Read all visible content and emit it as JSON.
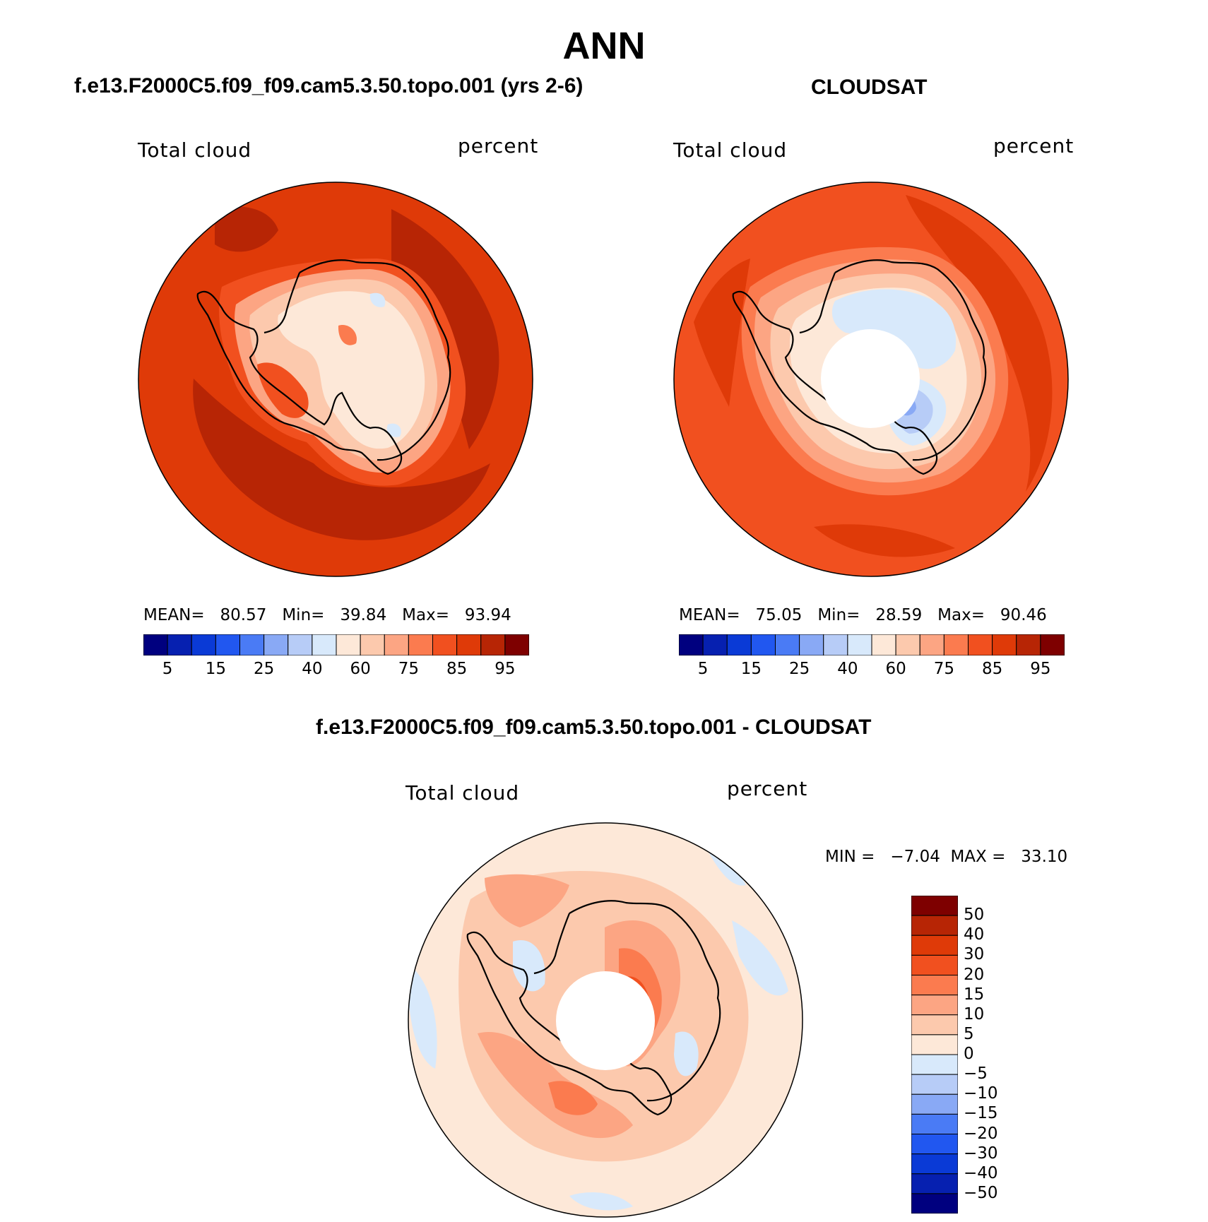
{
  "figure": {
    "title": "ANN",
    "panels": [
      {
        "id": "model",
        "title": "f.e13.F2000C5.f09_f09.cam5.3.50.topo.001 (yrs 2-6)",
        "left_label": "Total cloud",
        "right_label": "percent",
        "stats": {
          "mean_label": "MEAN=",
          "mean": "80.57",
          "min_label": "Min=",
          "min": "39.84",
          "max_label": "Max=",
          "max": "93.94"
        }
      },
      {
        "id": "obs",
        "title": "CLOUDSAT",
        "left_label": "Total cloud",
        "right_label": "percent",
        "stats": {
          "mean_label": "MEAN=",
          "mean": "75.05",
          "min_label": "Min=",
          "min": "28.59",
          "max_label": "Max=",
          "max": "90.46"
        }
      },
      {
        "id": "diff",
        "title": "f.e13.F2000C5.f09_f09.cam5.3.50.topo.001 - CLOUDSAT",
        "left_label": "Total cloud",
        "right_label": "percent",
        "minmax_text": "MIN =   −7.04  MAX =   33.10"
      }
    ]
  },
  "colorbars": {
    "abs": {
      "colors": [
        "#00007f",
        "#0620b0",
        "#0a3ad6",
        "#2157f0",
        "#4a7bf5",
        "#89a9f5",
        "#b7ccf7",
        "#d8e9fb",
        "#fde8d8",
        "#fcc9ad",
        "#fca583",
        "#fb7b4f",
        "#f1501f",
        "#df3a08",
        "#b72505",
        "#7e0000"
      ],
      "ticks": [
        "5",
        "15",
        "25",
        "40",
        "60",
        "75",
        "85",
        "95"
      ]
    },
    "diff": {
      "colors": [
        "#7e0000",
        "#b72505",
        "#df3a08",
        "#f1501f",
        "#fb7b4f",
        "#fca583",
        "#fcc9ad",
        "#fde8d8",
        "#d8e9fb",
        "#b7ccf7",
        "#89a9f5",
        "#4a7bf5",
        "#2157f0",
        "#0a3ad6",
        "#0620b0",
        "#00007f"
      ],
      "ticks": [
        "50",
        "40",
        "30",
        "20",
        "15",
        "10",
        "5",
        "0",
        "−5",
        "−10",
        "−15",
        "−20",
        "−30",
        "−40",
        "−50"
      ]
    }
  },
  "map_colors": {
    "m95": "#b72505",
    "m90": "#df3a08",
    "m85": "#f1501f",
    "m80": "#fb7b4f",
    "m75": "#fca583",
    "m70": "#fcc9ad",
    "m65": "#fde8d8",
    "m55": "#d8e9fb",
    "m45": "#b7ccf7",
    "m40": "#89a9f5",
    "coast": "#000000"
  }
}
